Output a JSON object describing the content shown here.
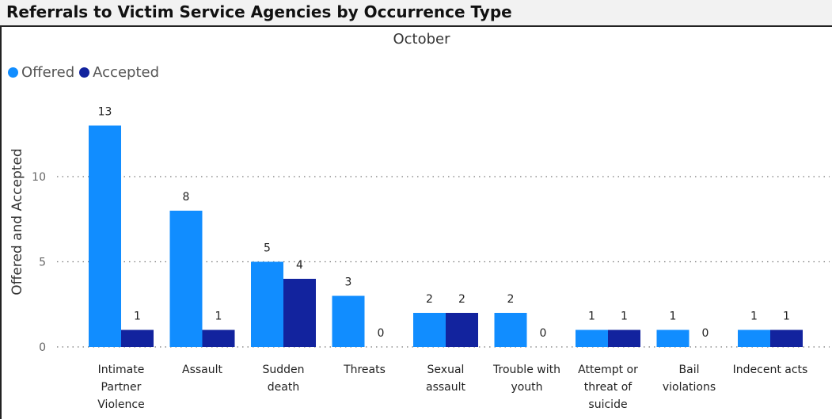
{
  "title": "Referrals to Victim Service Agencies by Occurrence Type",
  "colors": {
    "offered": "#118dff",
    "accepted": "#12239e"
  },
  "legend": {
    "offered": "Offered",
    "accepted": "Accepted"
  },
  "chart_data": {
    "type": "bar",
    "title": "October",
    "xlabel": "",
    "ylabel": "Offered and Accepted",
    "ylim": [
      0,
      14.5
    ],
    "yticks": [
      0,
      5,
      10
    ],
    "grid": true,
    "legend_position": "top-left",
    "categories": [
      "Intimate Partner Violence",
      "Assault",
      "Sudden death",
      "Threats",
      "Sexual assault",
      "Trouble with youth",
      "Attempt or threat of suicide",
      "Bail violations",
      "Indecent acts"
    ],
    "category_lines": [
      [
        "Intimate",
        "Partner",
        "Violence"
      ],
      [
        "Assault"
      ],
      [
        "Sudden",
        "death"
      ],
      [
        "Threats"
      ],
      [
        "Sexual",
        "assault"
      ],
      [
        "Trouble with",
        "youth"
      ],
      [
        "Attempt or",
        "threat of",
        "suicide"
      ],
      [
        "Bail",
        "violations"
      ],
      [
        "Indecent acts"
      ]
    ],
    "series": [
      {
        "name": "Offered",
        "values": [
          13,
          8,
          5,
          3,
          2,
          2,
          1,
          1,
          1
        ]
      },
      {
        "name": "Accepted",
        "values": [
          1,
          1,
          4,
          0,
          2,
          0,
          1,
          0,
          1
        ]
      }
    ]
  }
}
